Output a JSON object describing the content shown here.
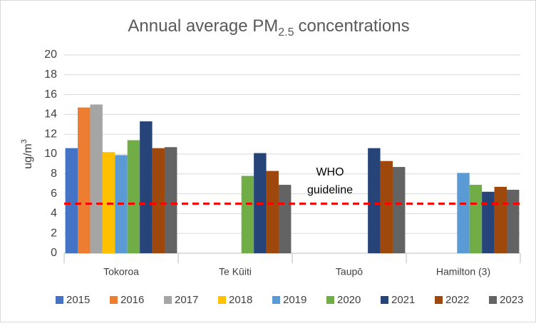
{
  "chart_data": {
    "type": "bar",
    "title": "Annual average PM",
    "title_subscript": "2.5",
    "title_end": "concentrations",
    "y_label": "ug/m",
    "y_label_superscript": "3",
    "categories": [
      "Tokoroa",
      "Te Kūiti",
      "Taupō",
      "Hamilton (3)"
    ],
    "series": [
      {
        "name": "2015",
        "color": "#4472c4",
        "values": [
          10.6,
          null,
          null,
          null
        ]
      },
      {
        "name": "2016",
        "color": "#ed7d31",
        "values": [
          14.7,
          null,
          null,
          null
        ]
      },
      {
        "name": "2017",
        "color": "#a5a5a5",
        "values": [
          15.0,
          null,
          null,
          null
        ]
      },
      {
        "name": "2018",
        "color": "#ffc000",
        "values": [
          10.2,
          null,
          null,
          null
        ]
      },
      {
        "name": "2019",
        "color": "#5b9bd5",
        "values": [
          9.9,
          null,
          null,
          8.1
        ]
      },
      {
        "name": "2020",
        "color": "#70ad47",
        "values": [
          11.4,
          7.8,
          null,
          6.9
        ]
      },
      {
        "name": "2021",
        "color": "#264478",
        "values": [
          13.3,
          10.1,
          10.6,
          6.2
        ]
      },
      {
        "name": "2022",
        "color": "#9e480e",
        "values": [
          10.6,
          8.3,
          9.3,
          6.7
        ]
      },
      {
        "name": "2023",
        "color": "#636363",
        "values": [
          10.7,
          6.9,
          8.7,
          6.4
        ]
      }
    ],
    "ylim": [
      0,
      20
    ],
    "yticks": [
      0,
      2,
      4,
      6,
      8,
      10,
      12,
      14,
      16,
      18,
      20
    ],
    "grid": true,
    "guideline": 5,
    "guideline_color": "#ff0000",
    "annotation": [
      "WHO",
      "guideline"
    ],
    "legend": "bottom"
  }
}
